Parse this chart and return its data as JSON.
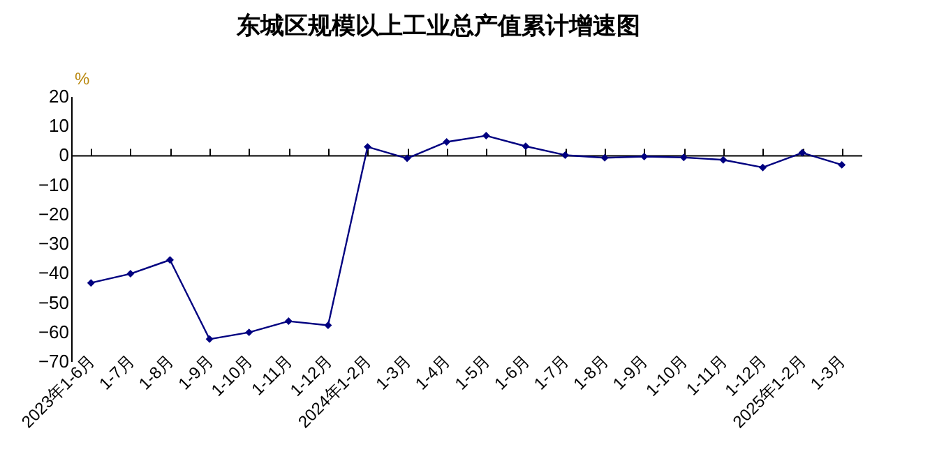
{
  "chart_data": {
    "type": "line",
    "title": "东城区规模以上工业总产值累计增速图",
    "ylabel": "%",
    "categories": [
      "2023年1-6月",
      "1-7月",
      "1-8月",
      "1-9月",
      "1-10月",
      "1-11月",
      "1-12月",
      "2024年1-2月",
      "1-3月",
      "1-4月",
      "1-5月",
      "1-6月",
      "1-7月",
      "1-8月",
      "1-9月",
      "1-10月",
      "1-11月",
      "1-12月",
      "2025年1-2月",
      "1-3月"
    ],
    "series": [
      {
        "color": "#000080",
        "values": [
          -43.4,
          -40.3,
          -35.6,
          -62.5,
          -60.2,
          -56.4,
          -57.8,
          2.8,
          -1.1,
          4.5,
          6.6,
          3.0,
          0,
          -0.9,
          -0.5,
          -0.8,
          -1.6,
          -4.2,
          0.8,
          -3.3
        ]
      }
    ],
    "ylim": [
      -70,
      20
    ],
    "yticks": [
      -70,
      -60,
      -50,
      -40,
      -30,
      -20,
      -10,
      0,
      10,
      20
    ],
    "marker": "diamond",
    "line_style": "solid"
  }
}
